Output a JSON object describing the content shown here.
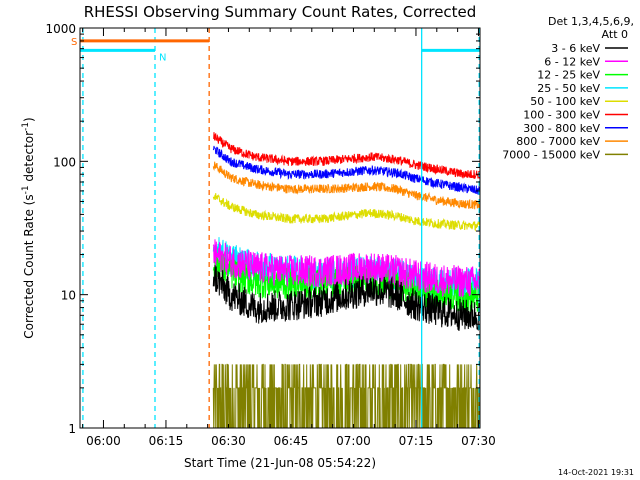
{
  "chart_data": {
    "type": "line",
    "title": "RHESSI Observing Summary Count Rates, Corrected",
    "xlabel": "Start Time (21-Jun-08 05:54:22)",
    "ylabel_main": "Corrected Count Rate (s",
    "ylabel_sup1": "-1",
    "ylabel_mid": " detector",
    "ylabel_sup2": "-1",
    "ylabel_end": ")",
    "y_scale": "log",
    "ylim": [
      1,
      1000
    ],
    "y_ticks": [
      {
        "value": 1,
        "label": "1"
      },
      {
        "value": 10,
        "label": "10"
      },
      {
        "value": 100,
        "label": "100"
      },
      {
        "value": 1000,
        "label": "1000"
      }
    ],
    "x_domain_minutes": [
      0,
      96
    ],
    "x_ticks": [
      {
        "minute": 5.63,
        "label": "06:00"
      },
      {
        "minute": 20.63,
        "label": "06:15"
      },
      {
        "minute": 35.63,
        "label": "06:30"
      },
      {
        "minute": 50.63,
        "label": "06:45"
      },
      {
        "minute": 65.63,
        "label": "07:00"
      },
      {
        "minute": 80.63,
        "label": "07:15"
      },
      {
        "minute": 95.63,
        "label": "07:30"
      }
    ],
    "legend_header": [
      "Det 1,3,4,5,6,9,",
      "Att 0"
    ],
    "legend_placement": "right",
    "series": [
      {
        "name": "3 - 6 keV",
        "color": "#000000",
        "points": [
          [
            32,
            14
          ],
          [
            36,
            10
          ],
          [
            42,
            8
          ],
          [
            50,
            8.3
          ],
          [
            58,
            9
          ],
          [
            64,
            10
          ],
          [
            70,
            11
          ],
          [
            76,
            10
          ],
          [
            80,
            8.5
          ],
          [
            86,
            7.5
          ],
          [
            92,
            7
          ],
          [
            96,
            7
          ]
        ]
      },
      {
        "name": "6 - 12 keV",
        "color": "#ff00ff",
        "points": [
          [
            32,
            20
          ],
          [
            36,
            18
          ],
          [
            42,
            16
          ],
          [
            50,
            15
          ],
          [
            58,
            15
          ],
          [
            64,
            15.5
          ],
          [
            70,
            16
          ],
          [
            76,
            15
          ],
          [
            80,
            14
          ],
          [
            86,
            13
          ],
          [
            92,
            12.5
          ],
          [
            96,
            12.5
          ]
        ]
      },
      {
        "name": "12 - 25 keV",
        "color": "#00ff00",
        "points": [
          [
            32,
            18
          ],
          [
            36,
            14.5
          ],
          [
            42,
            12.5
          ],
          [
            50,
            12
          ],
          [
            58,
            12.2
          ],
          [
            64,
            12.8
          ],
          [
            70,
            13
          ],
          [
            76,
            12
          ],
          [
            80,
            11
          ],
          [
            86,
            10.3
          ],
          [
            92,
            9.6
          ],
          [
            96,
            9.5
          ]
        ]
      },
      {
        "name": "25 - 50 keV",
        "color": "#00e5ff",
        "points": [
          [
            32,
            22
          ],
          [
            36,
            18.5
          ],
          [
            42,
            16
          ],
          [
            50,
            15
          ],
          [
            58,
            14.5
          ],
          [
            64,
            14.5
          ],
          [
            70,
            15
          ],
          [
            76,
            14
          ],
          [
            80,
            13
          ],
          [
            86,
            12
          ],
          [
            92,
            12
          ],
          [
            96,
            12
          ]
        ]
      },
      {
        "name": "50 - 100 keV",
        "color": "#dddd00",
        "points": [
          [
            32,
            55
          ],
          [
            36,
            46
          ],
          [
            42,
            40
          ],
          [
            50,
            37
          ],
          [
            58,
            37
          ],
          [
            64,
            39
          ],
          [
            70,
            41
          ],
          [
            76,
            39
          ],
          [
            80,
            36
          ],
          [
            86,
            34
          ],
          [
            92,
            33
          ],
          [
            96,
            33
          ]
        ]
      },
      {
        "name": "100 - 300 keV",
        "color": "#ff0000",
        "points": [
          [
            32,
            155
          ],
          [
            36,
            125
          ],
          [
            42,
            108
          ],
          [
            50,
            100
          ],
          [
            58,
            100
          ],
          [
            64,
            104
          ],
          [
            70,
            108
          ],
          [
            76,
            103
          ],
          [
            80,
            95
          ],
          [
            86,
            87
          ],
          [
            92,
            80
          ],
          [
            96,
            80
          ]
        ]
      },
      {
        "name": "300 - 800 keV",
        "color": "#0000ff",
        "points": [
          [
            32,
            125
          ],
          [
            36,
            100
          ],
          [
            42,
            88
          ],
          [
            50,
            80
          ],
          [
            58,
            80
          ],
          [
            64,
            83
          ],
          [
            70,
            86
          ],
          [
            76,
            82
          ],
          [
            80,
            75
          ],
          [
            86,
            68
          ],
          [
            92,
            63
          ],
          [
            96,
            60
          ]
        ]
      },
      {
        "name": "800 - 7000 keV",
        "color": "#ff8800",
        "points": [
          [
            32,
            95
          ],
          [
            36,
            76
          ],
          [
            42,
            67
          ],
          [
            50,
            62
          ],
          [
            58,
            62
          ],
          [
            64,
            63
          ],
          [
            70,
            65
          ],
          [
            76,
            62
          ],
          [
            80,
            56
          ],
          [
            86,
            51
          ],
          [
            92,
            48
          ],
          [
            96,
            47
          ]
        ]
      },
      {
        "name": "7000 - 15000 keV",
        "color": "#808000",
        "points": [
          [
            32,
            3
          ],
          [
            36,
            2
          ],
          [
            42,
            1.5
          ],
          [
            50,
            1.6
          ],
          [
            58,
            1.9
          ],
          [
            64,
            2.1
          ],
          [
            70,
            2.3
          ],
          [
            76,
            2.1
          ],
          [
            80,
            1.8
          ],
          [
            86,
            1.6
          ],
          [
            92,
            1.5
          ],
          [
            96,
            1.4
          ]
        ]
      }
    ],
    "flag_bars": [
      {
        "label": "S",
        "color": "#ff6600",
        "y": 800,
        "x_start": 0,
        "x_end": 31
      },
      {
        "label": "N",
        "color": "#00e5ff",
        "y": 680,
        "segments": [
          [
            0,
            18
          ],
          [
            82,
            96
          ]
        ]
      }
    ],
    "vertical_markers": [
      {
        "minute": 0.7,
        "color": "#00e5ff",
        "style": "dashed"
      },
      {
        "minute": 18,
        "color": "#00e5ff",
        "style": "dashed"
      },
      {
        "minute": 31,
        "color": "#ff6600",
        "style": "dashed"
      },
      {
        "minute": 82,
        "color": "#00e5ff",
        "style": "solid"
      },
      {
        "minute": 95.8,
        "color": "#00e5ff",
        "style": "dashed"
      }
    ]
  },
  "footer": {
    "timestamp": "14-Oct-2021 19:31"
  }
}
